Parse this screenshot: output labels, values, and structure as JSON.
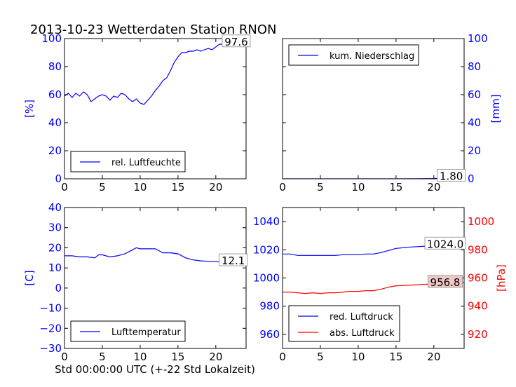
{
  "figure": {
    "title": "2013-10-23 Wetterdaten Station RNON",
    "xlabel": "Std 00:00:00 UTC (+-22 Std Lokalzeit)"
  },
  "colors": {
    "blue": "#0000ff",
    "red": "#ff0000",
    "black": "#000000",
    "annot_red_bg": "#f2c8c8"
  },
  "chart_data": [
    {
      "id": "humidity",
      "type": "line",
      "xlim": [
        0,
        24
      ],
      "ylim": [
        0,
        100
      ],
      "yaxis_side": "left",
      "ylabel": "[%]",
      "ylabel_color": "#0000ff",
      "xticks": [
        "0",
        "5",
        "10",
        "15",
        "20"
      ],
      "yticks": [
        "0",
        "20",
        "40",
        "60",
        "80",
        "100"
      ],
      "legend": {
        "position": "lower-left",
        "entries": [
          {
            "label": "rel. Luftfeuchte",
            "color": "#0000ff"
          }
        ]
      },
      "annotation": {
        "text": "97.6",
        "x": 22.7,
        "y": 97.6,
        "bg": "#ffffff"
      },
      "series": [
        {
          "name": "rel. Luftfeuchte",
          "color": "#0000ff",
          "x": [
            0,
            0.5,
            1,
            1.5,
            2,
            2.5,
            3,
            3.5,
            4,
            4.5,
            5,
            5.5,
            6,
            6.5,
            7,
            7.5,
            8,
            8.5,
            9,
            9.5,
            10,
            10.5,
            11,
            11.5,
            12,
            12.5,
            13,
            13.5,
            14,
            14.5,
            15,
            15.5,
            16,
            16.5,
            17,
            17.5,
            18,
            18.5,
            19,
            19.5,
            20,
            20.5,
            21,
            21.5,
            22,
            22.5,
            23,
            23.5,
            24
          ],
          "y": [
            59,
            61,
            58,
            61,
            59,
            62,
            60,
            55,
            57,
            59,
            60,
            59,
            56,
            59,
            58,
            61,
            60,
            57,
            55,
            57,
            54,
            53,
            56,
            59,
            63,
            66,
            70,
            72,
            77,
            83,
            87,
            90,
            90,
            91,
            91,
            92,
            91,
            92,
            93,
            92,
            94,
            96,
            96,
            97,
            97,
            97,
            97.5,
            97.6,
            97.6
          ]
        }
      ]
    },
    {
      "id": "precipitation",
      "type": "line",
      "xlim": [
        0,
        24
      ],
      "ylim": [
        0,
        100
      ],
      "yaxis_side": "right",
      "ylabel": "[mm]",
      "ylabel_color": "#0000ff",
      "xticks": [
        "0",
        "5",
        "10",
        "15",
        "20"
      ],
      "yticks": [
        "0",
        "20",
        "40",
        "60",
        "80",
        "100"
      ],
      "legend": {
        "position": "upper-left",
        "entries": [
          {
            "label": "kum. Niederschlag",
            "color": "#0000ff"
          }
        ]
      },
      "annotation": {
        "text": "1.80",
        "x": 22.3,
        "y": 1.8,
        "bg": "#ffffff"
      },
      "series": [
        {
          "name": "kum. Niederschlag",
          "color": "#0000ff",
          "x": [
            0,
            5,
            10,
            15,
            18,
            20,
            21,
            22,
            23,
            24
          ],
          "y": [
            0,
            0,
            0,
            0,
            0.1,
            0.2,
            0.5,
            1.0,
            1.5,
            1.8
          ]
        }
      ]
    },
    {
      "id": "temperature",
      "type": "line",
      "xlim": [
        0,
        24
      ],
      "ylim": [
        -30,
        40
      ],
      "yaxis_side": "left",
      "ylabel": "[C]",
      "ylabel_color": "#0000ff",
      "xticks": [
        "0",
        "5",
        "10",
        "15",
        "20"
      ],
      "yticks": [
        "−30",
        "−20",
        "−10",
        "0",
        "10",
        "20",
        "30",
        "40"
      ],
      "legend": {
        "position": "lower-left",
        "entries": [
          {
            "label": "Lufttemperatur",
            "color": "#0000ff"
          }
        ]
      },
      "annotation": {
        "text": "12.1",
        "x": 22.3,
        "y": 13.5,
        "bg": "#ffffff"
      },
      "series": [
        {
          "name": "Lufttemperatur",
          "color": "#0000ff",
          "x": [
            0,
            1,
            2,
            3,
            4,
            4.5,
            5,
            6,
            7,
            8,
            9,
            9.5,
            10,
            11,
            12,
            13,
            14,
            15,
            16,
            17,
            18,
            19,
            20,
            21,
            22,
            23,
            24
          ],
          "y": [
            16,
            16,
            15.5,
            15.5,
            15,
            16.5,
            16.5,
            15.5,
            16,
            17,
            19,
            20,
            19.5,
            19.5,
            19.5,
            17.5,
            17.5,
            17,
            15,
            14,
            13.5,
            13.3,
            13.1,
            12.8,
            12.6,
            12.3,
            12.1
          ]
        }
      ]
    },
    {
      "id": "pressure",
      "type": "line",
      "xlim": [
        0,
        24
      ],
      "ylim": [
        950,
        1050
      ],
      "y2lim": [
        910,
        1010
      ],
      "ylabel": "",
      "y2label": "[hPa]",
      "y2label_color": "#ff0000",
      "xticks": [
        "0",
        "5",
        "10",
        "15",
        "20"
      ],
      "yticks": [
        "960",
        "980",
        "1000",
        "1020",
        "1040"
      ],
      "y2ticks": [
        "920",
        "940",
        "960",
        "980",
        "1000"
      ],
      "legend": {
        "position": "lower-left",
        "entries": [
          {
            "label": "red. Luftdruck",
            "color": "#0000ff"
          },
          {
            "label": "abs. Luftdruck",
            "color": "#ff0000"
          }
        ]
      },
      "annotations": [
        {
          "text": "1024.0",
          "x": 21.5,
          "y": 1024.0,
          "bg": "#ffffff"
        },
        {
          "text": "956.8",
          "x": 21.5,
          "y": 956.8,
          "axis": "right",
          "bg": "#f2c8c8"
        }
      ],
      "series": [
        {
          "name": "red. Luftdruck",
          "color": "#0000ff",
          "axis": "left",
          "x": [
            0,
            1,
            2,
            3,
            4,
            5,
            6,
            7,
            8,
            9,
            10,
            11,
            12,
            13,
            14,
            15,
            16,
            17,
            18,
            19,
            20,
            21,
            22,
            23,
            24
          ],
          "y": [
            1017,
            1017,
            1016,
            1016,
            1016,
            1016,
            1016,
            1016,
            1016.5,
            1016.5,
            1016.5,
            1017,
            1017,
            1018,
            1019.5,
            1021,
            1021.5,
            1022,
            1022.3,
            1022.6,
            1023,
            1023.3,
            1023.6,
            1023.8,
            1024.0
          ]
        },
        {
          "name": "abs. Luftdruck",
          "color": "#ff0000",
          "axis": "right",
          "x": [
            0,
            1,
            2,
            3,
            4,
            5,
            6,
            7,
            8,
            9,
            10,
            11,
            12,
            13,
            14,
            15,
            16,
            17,
            18,
            19,
            20,
            21,
            22,
            23,
            24
          ],
          "y": [
            950,
            950,
            949.5,
            949,
            949.5,
            949,
            949.5,
            949.5,
            950,
            950.5,
            950.5,
            951,
            951,
            952,
            953.5,
            954.5,
            954.7,
            955,
            955.2,
            955.5,
            956,
            956.2,
            956.5,
            956.7,
            956.8
          ]
        }
      ]
    }
  ]
}
